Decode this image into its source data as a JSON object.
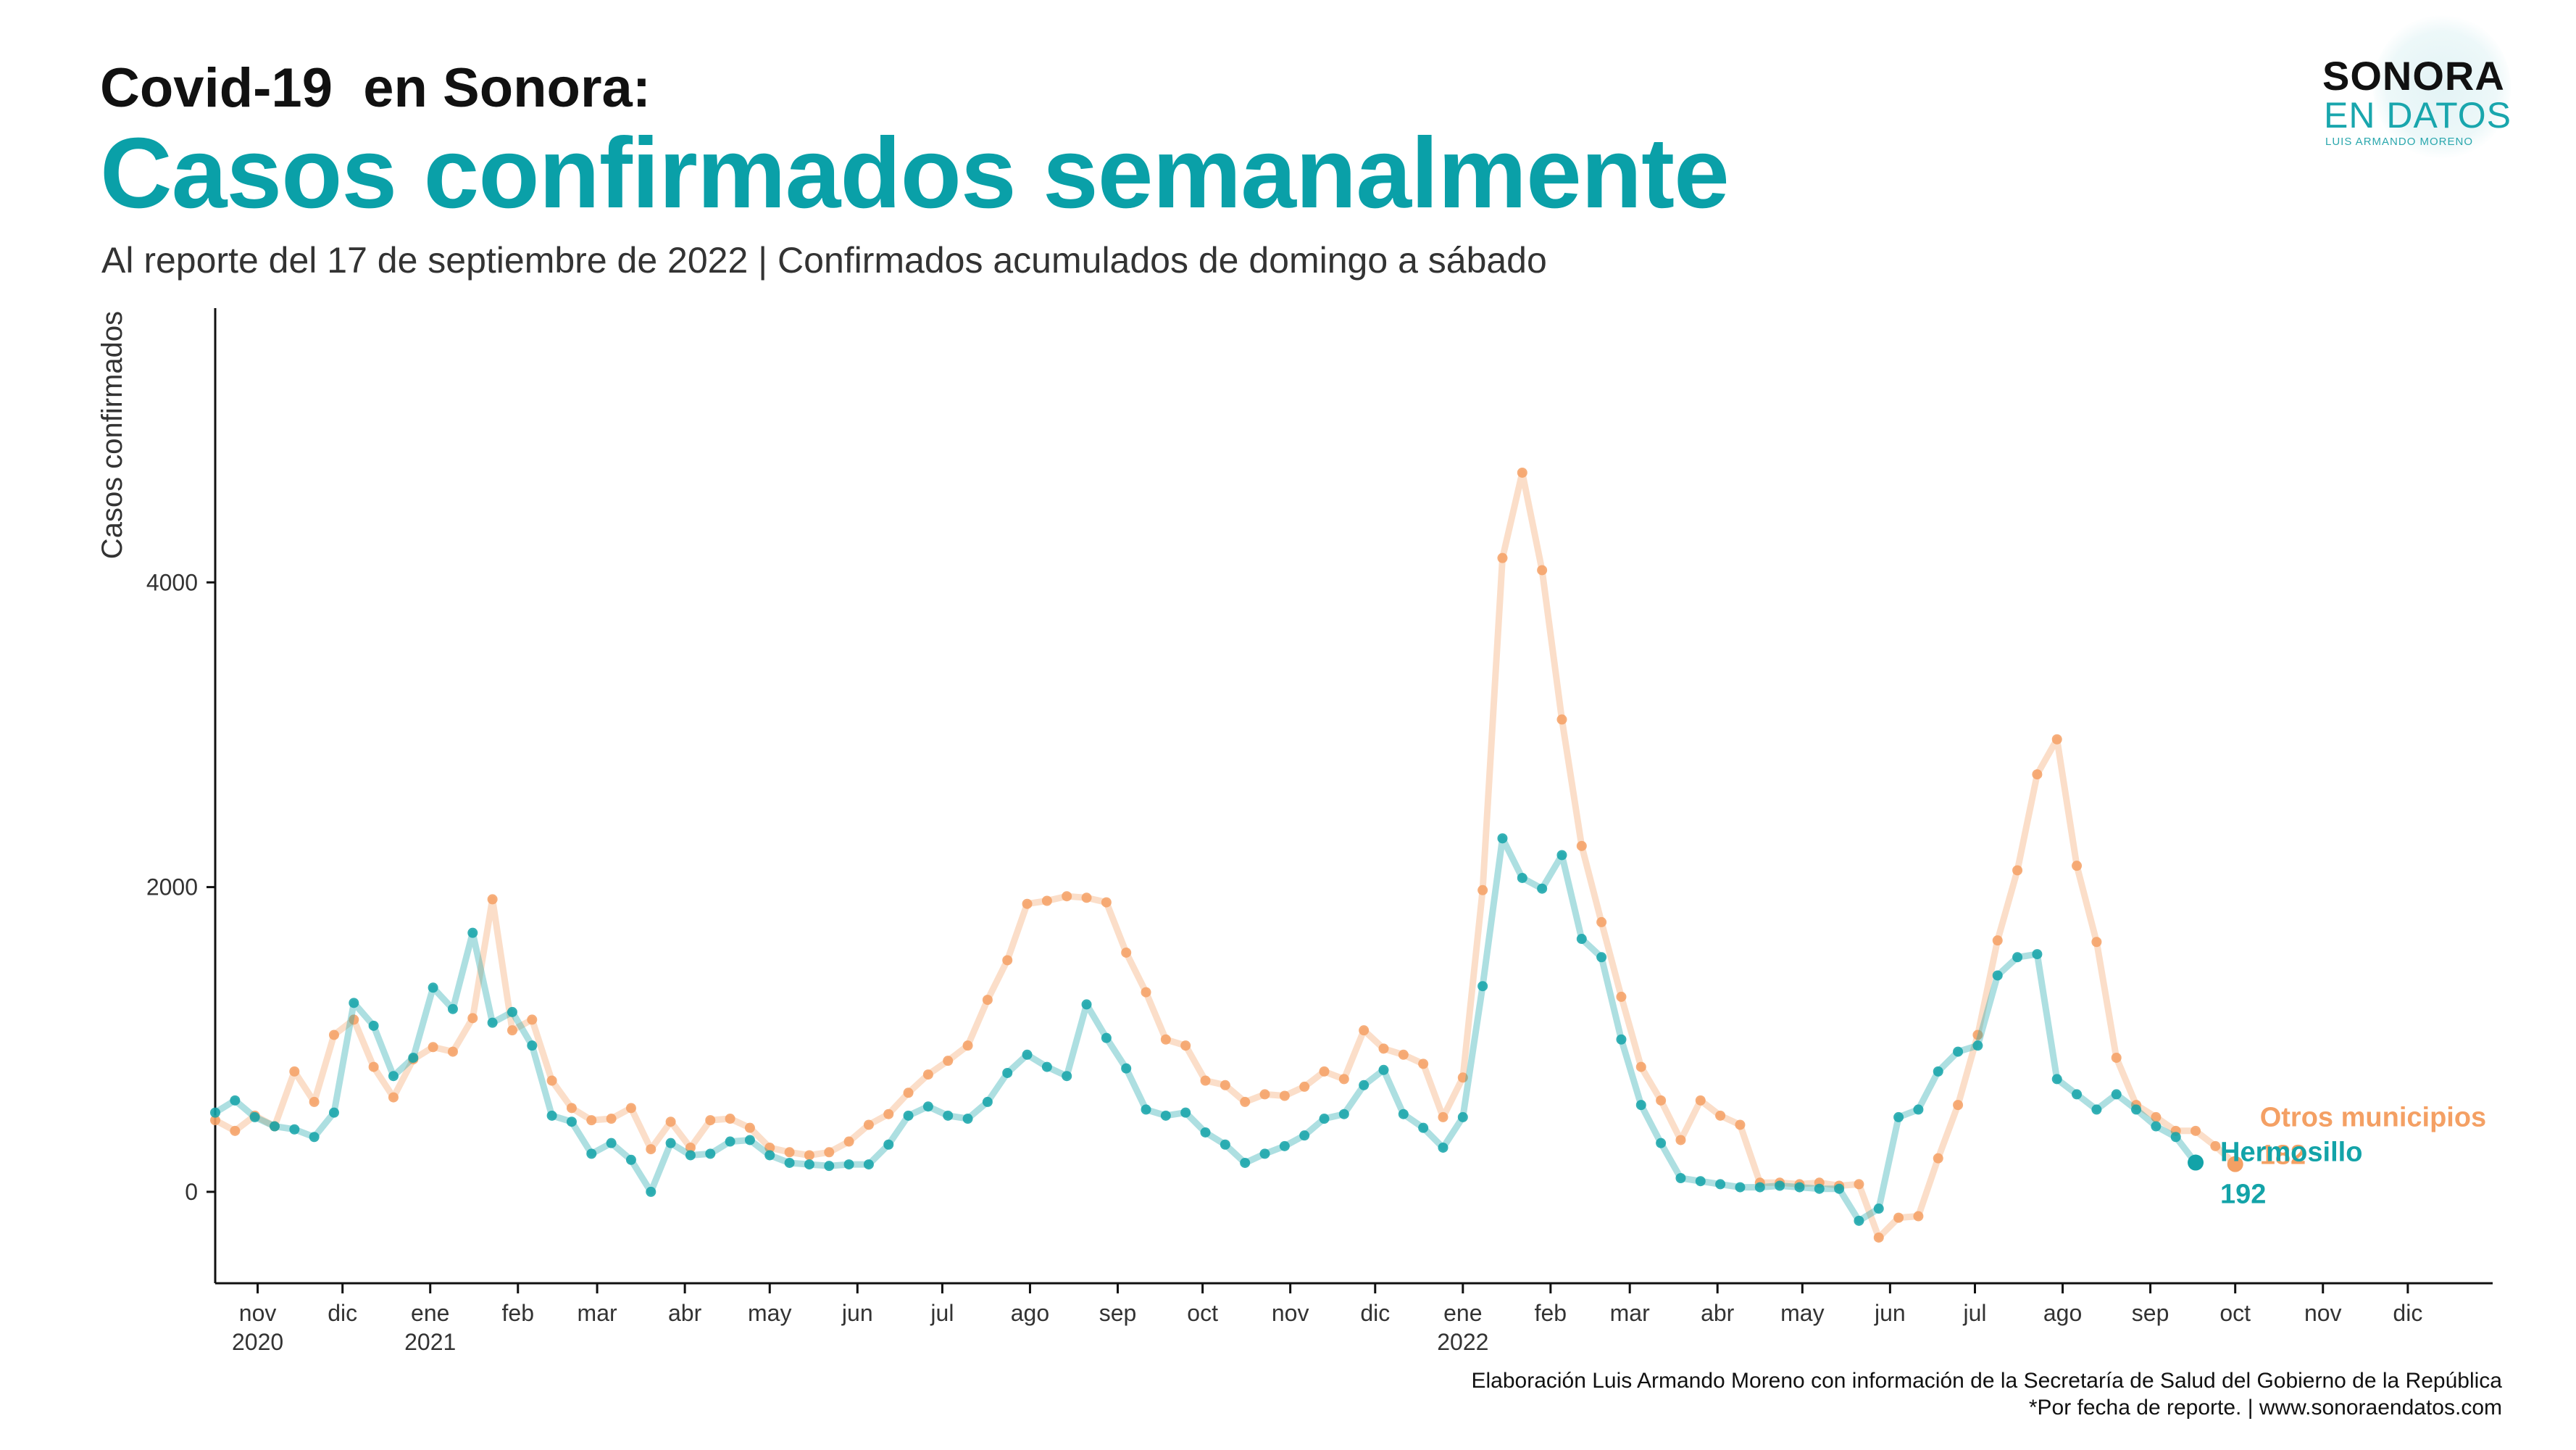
{
  "header": {
    "title": "Covid-19  en Sonora:",
    "main_title": "Casos confirmados semanalmente",
    "subtitle": "Al reporte del 17 de septiembre de 2022 | Confirmados acumulados de domingo a sábado"
  },
  "logo": {
    "line1": "SONORA",
    "line2": "EN DATOS",
    "line3": "LUIS ARMANDO MORENO"
  },
  "footer": {
    "line1": "Elaboración Luis Armando Moreno con información de la Secretaría de Salud del Gobierno de la República",
    "line2": "*Por fecha de reporte. | www.sonoraendatos.com"
  },
  "colors": {
    "hermosillo": "#13a3a8",
    "otros": "#f4a064",
    "axis": "#111111",
    "tick_text": "#333333"
  },
  "chart_data": {
    "type": "line",
    "title": "Casos confirmados semanalmente",
    "ylabel": "Casos confirmados",
    "xlabel": "",
    "ylim": [
      -600,
      5800
    ],
    "yticks": [
      0,
      2000,
      4000
    ],
    "x_start": "2020-10-17",
    "x_end": "2022-12-31",
    "x_ticks": [
      {
        "date": "2020-11-01",
        "label": "nov",
        "year": "2020"
      },
      {
        "date": "2020-12-01",
        "label": "dic",
        "year": ""
      },
      {
        "date": "2021-01-01",
        "label": "ene",
        "year": "2021"
      },
      {
        "date": "2021-02-01",
        "label": "feb",
        "year": ""
      },
      {
        "date": "2021-03-01",
        "label": "mar",
        "year": ""
      },
      {
        "date": "2021-04-01",
        "label": "abr",
        "year": ""
      },
      {
        "date": "2021-05-01",
        "label": "may",
        "year": ""
      },
      {
        "date": "2021-06-01",
        "label": "jun",
        "year": ""
      },
      {
        "date": "2021-07-01",
        "label": "jul",
        "year": ""
      },
      {
        "date": "2021-08-01",
        "label": "ago",
        "year": ""
      },
      {
        "date": "2021-09-01",
        "label": "sep",
        "year": ""
      },
      {
        "date": "2021-10-01",
        "label": "oct",
        "year": ""
      },
      {
        "date": "2021-11-01",
        "label": "nov",
        "year": ""
      },
      {
        "date": "2021-12-01",
        "label": "dic",
        "year": ""
      },
      {
        "date": "2022-01-01",
        "label": "ene",
        "year": "2022"
      },
      {
        "date": "2022-02-01",
        "label": "feb",
        "year": ""
      },
      {
        "date": "2022-03-01",
        "label": "mar",
        "year": ""
      },
      {
        "date": "2022-04-01",
        "label": "abr",
        "year": ""
      },
      {
        "date": "2022-05-01",
        "label": "may",
        "year": ""
      },
      {
        "date": "2022-06-01",
        "label": "jun",
        "year": ""
      },
      {
        "date": "2022-07-01",
        "label": "jul",
        "year": ""
      },
      {
        "date": "2022-08-01",
        "label": "ago",
        "year": ""
      },
      {
        "date": "2022-09-01",
        "label": "sep",
        "year": ""
      },
      {
        "date": "2022-10-01",
        "label": "oct",
        "year": ""
      },
      {
        "date": "2022-11-01",
        "label": "nov",
        "year": ""
      },
      {
        "date": "2022-12-01",
        "label": "dic",
        "year": ""
      }
    ],
    "first_week": "2020-10-17",
    "week_step_days": 7,
    "series": [
      {
        "name": "Otros municipios",
        "end_label": "182",
        "color": "#f4a064",
        "values": [
          470,
          400,
          500,
          430,
          790,
          590,
          1030,
          1130,
          820,
          620,
          870,
          950,
          920,
          1140,
          1920,
          1060,
          1130,
          730,
          550,
          470,
          480,
          550,
          280,
          460,
          290,
          470,
          480,
          420,
          290,
          260,
          240,
          260,
          330,
          440,
          510,
          650,
          770,
          860,
          960,
          1260,
          1520,
          1890,
          1910,
          1940,
          1930,
          1900,
          1570,
          1310,
          1000,
          960,
          730,
          700,
          590,
          640,
          630,
          690,
          790,
          740,
          1060,
          940,
          900,
          840,
          490,
          750,
          1980,
          4160,
          4720,
          4080,
          3100,
          2270,
          1770,
          1280,
          820,
          600,
          340,
          600,
          500,
          440,
          60,
          60,
          50,
          60,
          40,
          50,
          -300,
          -170,
          -160,
          220,
          570,
          1030,
          1650,
          2110,
          2740,
          2970,
          2140,
          1640,
          880,
          570,
          490,
          400,
          400,
          300,
          182
        ]
      },
      {
        "name": "Hermosillo",
        "end_label": "192",
        "color": "#13a3a8",
        "values": [
          520,
          600,
          490,
          430,
          410,
          360,
          520,
          1240,
          1090,
          760,
          880,
          1340,
          1200,
          1700,
          1110,
          1180,
          960,
          500,
          460,
          250,
          320,
          210,
          0,
          320,
          240,
          250,
          330,
          340,
          240,
          190,
          180,
          170,
          180,
          180,
          310,
          500,
          560,
          500,
          480,
          590,
          780,
          900,
          820,
          760,
          1230,
          1010,
          810,
          540,
          500,
          520,
          390,
          310,
          190,
          250,
          300,
          370,
          480,
          510,
          700,
          800,
          510,
          420,
          290,
          490,
          1350,
          2320,
          2060,
          1990,
          2210,
          1660,
          1540,
          1000,
          570,
          320,
          90,
          70,
          50,
          30,
          30,
          40,
          30,
          20,
          20,
          -190,
          -110,
          490,
          540,
          790,
          920,
          960,
          1420,
          1540,
          1560,
          740,
          640,
          540,
          640,
          540,
          430,
          360,
          192
        ]
      }
    ],
    "legend": "end-of-line labels"
  }
}
